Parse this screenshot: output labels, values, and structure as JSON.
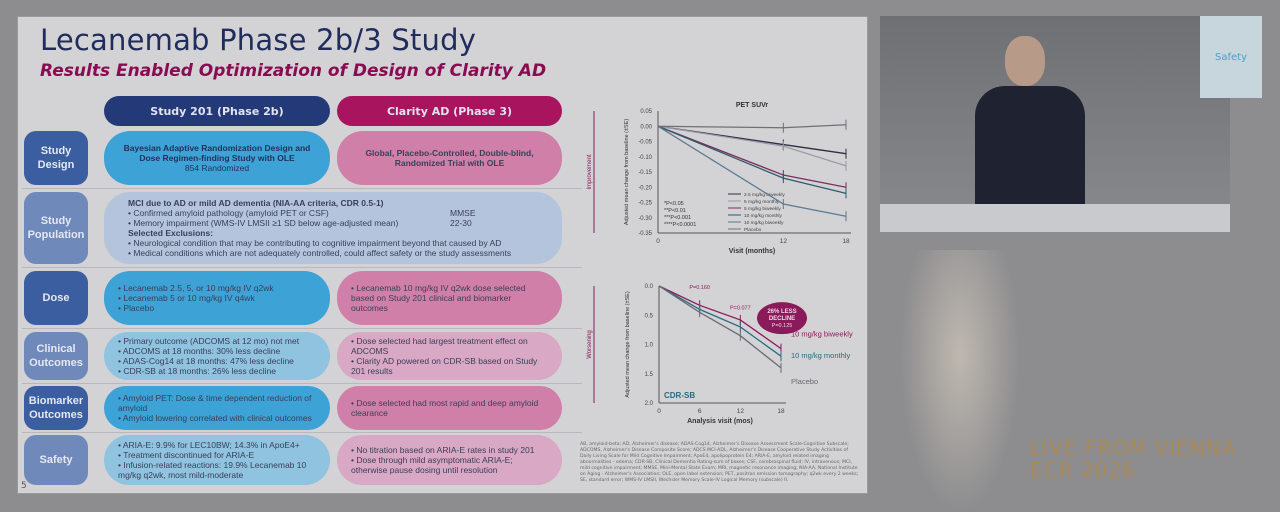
{
  "slide": {
    "title": "Lecanemab Phase 2b/3 Study",
    "subtitle": "Results Enabled Optimization of Design of Clarity AD",
    "page_number": "5",
    "columns": [
      "Study 201 (Phase 2b)",
      "Clarity AD (Phase 3)"
    ],
    "rows": {
      "design": {
        "label": "Study Design",
        "c1_title": "Bayesian Adaptive Randomization Design and Dose Regimen-finding Study with OLE",
        "c1_sub": "854 Randomized",
        "c2": "Global, Placebo-Controlled, Double-blind, Randomized Trial with OLE"
      },
      "population": {
        "label": "Study Population",
        "heading": "MCI due to AD or mild AD dementia (NIA-AA criteria, CDR 0.5-1)",
        "items": [
          "Confirmed amyloid pathology (amyloid PET or CSF)",
          "Memory impairment (WMS-IV LMSII ≥1 SD below age-adjusted mean)"
        ],
        "mmse": "MMSE",
        "mmse_range": "22-30",
        "excl_heading": "Selected Exclusions:",
        "excl": [
          "Neurological condition that may be contributing to cognitive impairment beyond that caused by AD",
          "Medical conditions which are not adequately controlled, could affect safety or the study assessments"
        ]
      },
      "dose": {
        "label": "Dose",
        "c1": [
          "Lecanemab 2.5, 5, or 10 mg/kg IV q2wk",
          "Lecanemab 5 or 10 mg/kg IV q4wk",
          "Placebo"
        ],
        "c2": [
          "Lecanemab 10 mg/kg IV q2wk dose selected based on Study 201 clinical and biomarker outcomes"
        ]
      },
      "clinical": {
        "label": "Clinical Outcomes",
        "c1": [
          "Primary outcome (ADCOMS at 12 mo) not met",
          "ADCOMS at 18 months: 30% less decline",
          "ADAS-Cog14 at 18 months: 47% less decline",
          "CDR-SB at 18 months: 26% less decline"
        ],
        "c2": [
          "Dose selected had largest treatment effect on ADCOMS",
          "Clarity AD powered on CDR-SB based on Study 201 results"
        ]
      },
      "biomarker": {
        "label": "Biomarker Outcomes",
        "c1": [
          "Amyloid PET: Dose & time dependent reduction of amyloid",
          "Amyloid lowering correlated with clinical outcomes"
        ],
        "c2": [
          "Dose selected had most rapid and deep amyloid clearance"
        ]
      },
      "safety": {
        "label": "Safety",
        "c1": [
          "ARIA-E: 9.9% for LEC10BW; 14.3% in ApoE4+",
          "Treatment discontinued for ARIA-E",
          "Infusion-related reactions: 19.9% Lecanemab 10 mg/kg q2wk, most mild-moderate"
        ],
        "c2": [
          "No titration based on ARIA-E rates in study 201",
          "Dose through mild asymptomatic ARIA-E; otherwise pause dosing until resolution"
        ]
      }
    },
    "footnote": "AB, amyloid-beta; AD, Alzheimer's disease; ADAS-Cog14, Alzheimer's Disease Assessment Scale-Cognitive Subscale; ADCOMS, Alzheimer's Disease Composite Score; ADCS MCI-ADL, Alzheimer's Disease Cooperative Study Activities of Daily Living Scale for Mild Cognitive Impairment; ApoE4, apolipoprotein E4; ARIA-E, amyloid related imaging abnormalities - edema; CDR-SB, Clinical Dementia Rating-sum of boxes; CSF, cerebrospinal fluid; IV, intravenous; MCI, mild cognitive impairment; MMSE, Mini-Mental State Exam; MRI, magnetic resonance imaging; NIA-AA, National Institute on Aging - Alzheimer's Association; OLE, open label extension; PET, positron emission tomography; q2wk every 2 weeks; SE, standard error; WMS-IV LMSII, Wechsler Memory Scale-IV Logical Memory (subscale) II."
  },
  "chart_data": [
    {
      "type": "line",
      "title": "PET SUVr",
      "xlabel": "Visit (months)",
      "ylabel": "Adjusted mean change from baseline (±SE)",
      "side_label": "Improvement",
      "x": [
        0,
        12,
        18
      ],
      "xticks": [
        "0",
        "12",
        "18"
      ],
      "ylim": [
        -0.35,
        0.05
      ],
      "yticks": [
        "0.05",
        "0.00",
        "-0.05",
        "-0.10",
        "-0.15",
        "-0.20",
        "-0.25",
        "-0.30",
        "-0.35"
      ],
      "series": [
        {
          "name": "2.5 mg/kg biweekly",
          "color": "#2d2d44",
          "values": [
            0,
            -0.06,
            -0.09
          ]
        },
        {
          "name": "5 mg/kg monthly",
          "color": "#9a9aa8",
          "values": [
            0,
            -0.065,
            -0.13
          ]
        },
        {
          "name": "5 mg/kg biweekly",
          "color": "#7a3060",
          "values": [
            0,
            -0.16,
            -0.2
          ]
        },
        {
          "name": "10 mg/kg monthly",
          "color": "#2f5b6a",
          "values": [
            0,
            -0.17,
            -0.22
          ]
        },
        {
          "name": "10 mg/kg biweekly",
          "color": "#5c7a92",
          "values": [
            0,
            -0.255,
            -0.295
          ]
        },
        {
          "name": "Placebo",
          "color": "#707078",
          "values": [
            0,
            -0.005,
            0.005
          ]
        }
      ],
      "pvalues": [
        "*P<0.05",
        "**P<0.01",
        "***P<0.001",
        "****P<0.0001"
      ]
    },
    {
      "type": "line",
      "title": "CDR-SB",
      "xlabel": "Analysis visit (mos)",
      "ylabel": "Adjusted mean change from baseline (±SE)",
      "side_label": "Worsening",
      "x": [
        0,
        6,
        12,
        18
      ],
      "xticks": [
        "0",
        "6",
        "12",
        "18"
      ],
      "ylim": [
        0,
        2.0
      ],
      "yticks": [
        "0.0",
        "0.5",
        "1.0",
        "1.5",
        "2.0"
      ],
      "series": [
        {
          "name": "10 mg/kg biweekly",
          "color": "#8a1a5a",
          "values": [
            0,
            0.33,
            0.58,
            1.07
          ]
        },
        {
          "name": "10 mg/kg monthly",
          "color": "#2a6a80",
          "values": [
            0,
            0.4,
            0.7,
            1.2
          ]
        },
        {
          "name": "Placebo",
          "color": "#6a6a70",
          "values": [
            0,
            0.45,
            0.85,
            1.4
          ]
        }
      ],
      "annotations": [
        "P=0.160",
        "P=0.077"
      ],
      "callout": [
        "26% LESS",
        "DECLINE",
        "P=0.125"
      ]
    }
  ],
  "video": {
    "screen_text": "Safety"
  },
  "branding": {
    "line1": "LIVE FROM VIENNA",
    "line2": "ECR 2026"
  }
}
